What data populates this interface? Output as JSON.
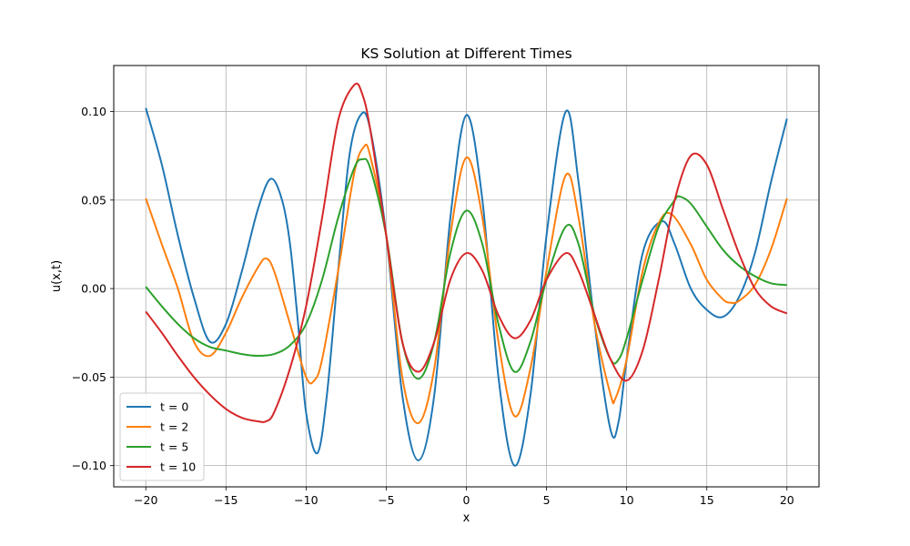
{
  "chart_data": {
    "type": "line",
    "title": "KS Solution at Different Times",
    "xlabel": "x",
    "ylabel": "u(x,t)",
    "xlim": [
      -22,
      22
    ],
    "ylim": [
      -0.112,
      0.126
    ],
    "xticks": [
      -20,
      -15,
      -10,
      -5,
      0,
      5,
      10,
      15,
      20
    ],
    "xtick_labels": [
      "−20",
      "−15",
      "−10",
      "−5",
      "0",
      "5",
      "10",
      "15",
      "20"
    ],
    "yticks": [
      -0.1,
      -0.05,
      0.0,
      0.05,
      0.1
    ],
    "ytick_labels": [
      "−0.10",
      "−0.05",
      "0.00",
      "0.05",
      "0.10"
    ],
    "grid": true,
    "legend_position": "lower-left",
    "series": [
      {
        "name": "t = 0",
        "color": "#1f77b4",
        "points": [
          [
            -20,
            0.102
          ],
          [
            -19,
            0.07
          ],
          [
            -18,
            0.03
          ],
          [
            -17,
            -0.005
          ],
          [
            -16,
            -0.03
          ],
          [
            -15,
            -0.02
          ],
          [
            -14,
            0.01
          ],
          [
            -13,
            0.045
          ],
          [
            -12.2,
            0.062
          ],
          [
            -11.5,
            0.05
          ],
          [
            -11,
            0.025
          ],
          [
            -10.5,
            -0.02
          ],
          [
            -10,
            -0.07
          ],
          [
            -9.3,
            -0.093
          ],
          [
            -8.7,
            -0.06
          ],
          [
            -8,
            0.01
          ],
          [
            -7.3,
            0.075
          ],
          [
            -6.6,
            0.098
          ],
          [
            -6,
            0.09
          ],
          [
            -5,
            0.03
          ],
          [
            -4,
            -0.06
          ],
          [
            -3,
            -0.097
          ],
          [
            -2,
            -0.06
          ],
          [
            -1,
            0.04
          ],
          [
            0,
            0.098
          ],
          [
            1,
            0.05
          ],
          [
            2,
            -0.05
          ],
          [
            3,
            -0.1
          ],
          [
            4,
            -0.06
          ],
          [
            5,
            0.03
          ],
          [
            6.2,
            0.1
          ],
          [
            7,
            0.06
          ],
          [
            8,
            -0.02
          ],
          [
            9,
            -0.08
          ],
          [
            9.5,
            -0.075
          ],
          [
            10,
            -0.04
          ],
          [
            11,
            0.02
          ],
          [
            12.2,
            0.038
          ],
          [
            13,
            0.025
          ],
          [
            14,
            0.0
          ],
          [
            15,
            -0.012
          ],
          [
            16,
            -0.016
          ],
          [
            17,
            -0.005
          ],
          [
            18,
            0.02
          ],
          [
            19,
            0.06
          ],
          [
            20,
            0.096
          ]
        ]
      },
      {
        "name": "t = 2",
        "color": "#ff7f0e",
        "points": [
          [
            -20,
            0.051
          ],
          [
            -19,
            0.025
          ],
          [
            -18,
            0.0
          ],
          [
            -17,
            -0.03
          ],
          [
            -16,
            -0.038
          ],
          [
            -15,
            -0.025
          ],
          [
            -14,
            -0.005
          ],
          [
            -13,
            0.012
          ],
          [
            -12.5,
            0.017
          ],
          [
            -12,
            0.01
          ],
          [
            -11,
            -0.02
          ],
          [
            -10,
            -0.05
          ],
          [
            -9.5,
            -0.052
          ],
          [
            -9,
            -0.04
          ],
          [
            -8,
            0.01
          ],
          [
            -7,
            0.065
          ],
          [
            -6.4,
            0.08
          ],
          [
            -6,
            0.075
          ],
          [
            -5,
            0.03
          ],
          [
            -4,
            -0.05
          ],
          [
            -3,
            -0.076
          ],
          [
            -2,
            -0.045
          ],
          [
            -1,
            0.03
          ],
          [
            0,
            0.074
          ],
          [
            1,
            0.04
          ],
          [
            2,
            -0.03
          ],
          [
            3,
            -0.072
          ],
          [
            4,
            -0.045
          ],
          [
            5,
            0.01
          ],
          [
            6.2,
            0.064
          ],
          [
            7,
            0.04
          ],
          [
            8,
            -0.02
          ],
          [
            9,
            -0.06
          ],
          [
            9.3,
            -0.062
          ],
          [
            10,
            -0.04
          ],
          [
            11,
            0.01
          ],
          [
            12,
            0.037
          ],
          [
            12.8,
            0.042
          ],
          [
            14,
            0.025
          ],
          [
            15,
            0.005
          ],
          [
            16,
            -0.006
          ],
          [
            16.5,
            -0.008
          ],
          [
            17,
            -0.007
          ],
          [
            18,
            0.002
          ],
          [
            19,
            0.022
          ],
          [
            20,
            0.051
          ]
        ]
      },
      {
        "name": "t = 5",
        "color": "#2ca02c",
        "points": [
          [
            -20,
            0.001
          ],
          [
            -19,
            -0.01
          ],
          [
            -18,
            -0.02
          ],
          [
            -17,
            -0.028
          ],
          [
            -16,
            -0.033
          ],
          [
            -15,
            -0.035
          ],
          [
            -14,
            -0.037
          ],
          [
            -13,
            -0.038
          ],
          [
            -12,
            -0.037
          ],
          [
            -11,
            -0.032
          ],
          [
            -10,
            -0.02
          ],
          [
            -9,
            0.005
          ],
          [
            -8,
            0.04
          ],
          [
            -7,
            0.068
          ],
          [
            -6.5,
            0.073
          ],
          [
            -6,
            0.068
          ],
          [
            -5,
            0.03
          ],
          [
            -4,
            -0.03
          ],
          [
            -3,
            -0.051
          ],
          [
            -2,
            -0.03
          ],
          [
            -1,
            0.02
          ],
          [
            0,
            0.044
          ],
          [
            1,
            0.025
          ],
          [
            2,
            -0.02
          ],
          [
            3,
            -0.047
          ],
          [
            4,
            -0.03
          ],
          [
            5,
            0.005
          ],
          [
            6.2,
            0.035
          ],
          [
            7,
            0.025
          ],
          [
            8,
            -0.015
          ],
          [
            9,
            -0.04
          ],
          [
            9.5,
            -0.04
          ],
          [
            10,
            -0.028
          ],
          [
            11,
            0.005
          ],
          [
            12,
            0.035
          ],
          [
            13,
            0.05
          ],
          [
            13.3,
            0.052
          ],
          [
            14,
            0.048
          ],
          [
            15,
            0.035
          ],
          [
            16,
            0.022
          ],
          [
            17,
            0.013
          ],
          [
            18,
            0.007
          ],
          [
            19,
            0.003
          ],
          [
            20,
            0.002
          ]
        ]
      },
      {
        "name": "t = 10",
        "color": "#d62728",
        "points": [
          [
            -20,
            -0.013
          ],
          [
            -19,
            -0.025
          ],
          [
            -18,
            -0.038
          ],
          [
            -17,
            -0.05
          ],
          [
            -16,
            -0.06
          ],
          [
            -15,
            -0.068
          ],
          [
            -14,
            -0.073
          ],
          [
            -13,
            -0.075
          ],
          [
            -12.5,
            -0.075
          ],
          [
            -12,
            -0.07
          ],
          [
            -11,
            -0.045
          ],
          [
            -10,
            -0.01
          ],
          [
            -9,
            0.04
          ],
          [
            -8,
            0.095
          ],
          [
            -7,
            0.115
          ],
          [
            -6.5,
            0.11
          ],
          [
            -6,
            0.09
          ],
          [
            -5,
            0.03
          ],
          [
            -4,
            -0.03
          ],
          [
            -3,
            -0.047
          ],
          [
            -2,
            -0.03
          ],
          [
            -1,
            0.005
          ],
          [
            0,
            0.02
          ],
          [
            1,
            0.01
          ],
          [
            2,
            -0.015
          ],
          [
            3,
            -0.028
          ],
          [
            4,
            -0.018
          ],
          [
            5,
            0.005
          ],
          [
            6.2,
            0.02
          ],
          [
            7,
            0.01
          ],
          [
            8,
            -0.015
          ],
          [
            9,
            -0.04
          ],
          [
            10,
            -0.052
          ],
          [
            11,
            -0.035
          ],
          [
            12,
            0.005
          ],
          [
            13,
            0.05
          ],
          [
            14,
            0.075
          ],
          [
            15,
            0.07
          ],
          [
            16,
            0.045
          ],
          [
            17,
            0.02
          ],
          [
            18,
            0.0
          ],
          [
            19,
            -0.01
          ],
          [
            20,
            -0.014
          ]
        ]
      }
    ]
  }
}
